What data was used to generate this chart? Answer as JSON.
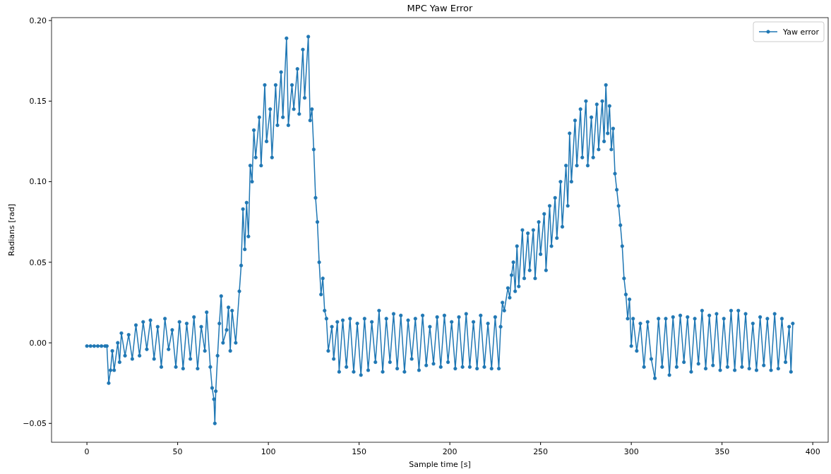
{
  "chart_data": {
    "type": "line",
    "title": "MPC Yaw Error",
    "xlabel": "Sample time [s]",
    "ylabel": "Radians [rad]",
    "xlim": [
      -19.5,
      408.5
    ],
    "ylim": [
      -0.0617,
      0.2018
    ],
    "xticks": [
      0,
      50,
      100,
      150,
      200,
      250,
      300,
      350,
      400
    ],
    "yticks": [
      {
        "value": -0.05,
        "label": "−0.05"
      },
      {
        "value": 0,
        "label": "0.00"
      },
      {
        "value": 0.05,
        "label": "0.05"
      },
      {
        "value": 0.1,
        "label": "0.10"
      },
      {
        "value": 0.15,
        "label": "0.15"
      },
      {
        "value": 0.2,
        "label": "0.20"
      }
    ],
    "grid": false,
    "legend": "top right",
    "marker": "circle",
    "line_style": "solid",
    "x": [
      0,
      2,
      4,
      6,
      8,
      10,
      11,
      12,
      13,
      14,
      15,
      17,
      18,
      19,
      21,
      23,
      25,
      27,
      29,
      31,
      33,
      35,
      37,
      39,
      41,
      43,
      45,
      47,
      49,
      51,
      53,
      55,
      57,
      59,
      61,
      63,
      65,
      66,
      68,
      69,
      70,
      70.5,
      71,
      72,
      73,
      74,
      75,
      77,
      78,
      79,
      80,
      82,
      84,
      85,
      86,
      87,
      88,
      89,
      90,
      91,
      92,
      93,
      95,
      96,
      98,
      99,
      101,
      102,
      104,
      105,
      107,
      108,
      110,
      111,
      113,
      114,
      116,
      117,
      119,
      120,
      122,
      123,
      124,
      125,
      126,
      127,
      128,
      129,
      130,
      131,
      132,
      133,
      135,
      136,
      138,
      139,
      141,
      143,
      145,
      147,
      149,
      151,
      153,
      155,
      157,
      159,
      161,
      163,
      165,
      167,
      169,
      171,
      173,
      175,
      177,
      179,
      181,
      183,
      185,
      187,
      189,
      191,
      193,
      195,
      197,
      199,
      201,
      203,
      205,
      207,
      209,
      211,
      213,
      215,
      217,
      219,
      221,
      223,
      225,
      227,
      228,
      229,
      230,
      232,
      233,
      234,
      235,
      236,
      237,
      238,
      240,
      241,
      243,
      244,
      246,
      247,
      249,
      250,
      252,
      253,
      255,
      256,
      258,
      259,
      261,
      262,
      264,
      265,
      266,
      267,
      269,
      270,
      272,
      273,
      275,
      276,
      278,
      279,
      281,
      282,
      284,
      285,
      286,
      287,
      288,
      289,
      290,
      291,
      292,
      293,
      294,
      295,
      296,
      297,
      298,
      299,
      300,
      301,
      303,
      305,
      307,
      309,
      311,
      313,
      315,
      317,
      319,
      321,
      323,
      325,
      327,
      329,
      331,
      333,
      335,
      337,
      339,
      341,
      343,
      345,
      347,
      349,
      351,
      353,
      355,
      357,
      359,
      361,
      363,
      365,
      367,
      369,
      371,
      373,
      375,
      377,
      379,
      381,
      383,
      385,
      387,
      388,
      389
    ],
    "series": [
      {
        "name": "Yaw error",
        "color": "#1f77b4",
        "values": [
          -0.002,
          -0.002,
          -0.002,
          -0.002,
          -0.002,
          -0.002,
          -0.002,
          -0.025,
          -0.017,
          -0.005,
          -0.017,
          0.0,
          -0.012,
          0.006,
          -0.008,
          0.005,
          -0.01,
          0.011,
          -0.008,
          0.013,
          -0.004,
          0.014,
          -0.01,
          0.01,
          -0.015,
          0.015,
          -0.004,
          0.008,
          -0.015,
          0.013,
          -0.016,
          0.012,
          -0.01,
          0.016,
          -0.016,
          0.01,
          -0.005,
          0.019,
          -0.015,
          -0.028,
          -0.035,
          -0.05,
          -0.03,
          -0.008,
          0.012,
          0.029,
          0.0,
          0.008,
          0.022,
          -0.005,
          0.02,
          0.0,
          0.032,
          0.048,
          0.083,
          0.058,
          0.087,
          0.066,
          0.11,
          0.1,
          0.132,
          0.115,
          0.14,
          0.11,
          0.16,
          0.125,
          0.145,
          0.115,
          0.16,
          0.135,
          0.168,
          0.14,
          0.189,
          0.135,
          0.16,
          0.145,
          0.17,
          0.142,
          0.182,
          0.152,
          0.19,
          0.138,
          0.145,
          0.12,
          0.09,
          0.075,
          0.05,
          0.03,
          0.04,
          0.02,
          0.015,
          -0.005,
          0.01,
          -0.01,
          0.013,
          -0.018,
          0.014,
          -0.015,
          0.015,
          -0.018,
          0.012,
          -0.02,
          0.015,
          -0.017,
          0.013,
          -0.012,
          0.02,
          -0.018,
          0.015,
          -0.012,
          0.018,
          -0.016,
          0.017,
          -0.018,
          0.014,
          -0.01,
          0.015,
          -0.017,
          0.017,
          -0.014,
          0.01,
          -0.013,
          0.016,
          -0.015,
          0.017,
          -0.012,
          0.013,
          -0.016,
          0.016,
          -0.015,
          0.018,
          -0.015,
          0.013,
          -0.016,
          0.017,
          -0.015,
          0.012,
          -0.016,
          0.016,
          -0.016,
          0.01,
          0.025,
          0.02,
          0.034,
          0.028,
          0.042,
          0.05,
          0.032,
          0.06,
          0.035,
          0.07,
          0.04,
          0.068,
          0.045,
          0.07,
          0.04,
          0.075,
          0.055,
          0.08,
          0.045,
          0.085,
          0.06,
          0.09,
          0.065,
          0.1,
          0.072,
          0.11,
          0.085,
          0.13,
          0.1,
          0.138,
          0.11,
          0.145,
          0.115,
          0.15,
          0.11,
          0.14,
          0.115,
          0.148,
          0.12,
          0.15,
          0.125,
          0.16,
          0.13,
          0.147,
          0.12,
          0.133,
          0.105,
          0.095,
          0.085,
          0.073,
          0.06,
          0.04,
          0.03,
          0.015,
          0.027,
          -0.002,
          0.015,
          -0.005,
          0.012,
          -0.015,
          0.013,
          -0.01,
          -0.022,
          0.015,
          -0.015,
          0.015,
          -0.02,
          0.016,
          -0.015,
          0.017,
          -0.012,
          0.016,
          -0.018,
          0.015,
          -0.013,
          0.02,
          -0.016,
          0.017,
          -0.014,
          0.018,
          -0.017,
          0.015,
          -0.015,
          0.02,
          -0.017,
          0.02,
          -0.015,
          0.018,
          -0.016,
          0.012,
          -0.017,
          0.016,
          -0.014,
          0.015,
          -0.017,
          0.018,
          -0.016,
          0.015,
          -0.012,
          0.01,
          -0.018,
          0.012
        ]
      }
    ]
  }
}
